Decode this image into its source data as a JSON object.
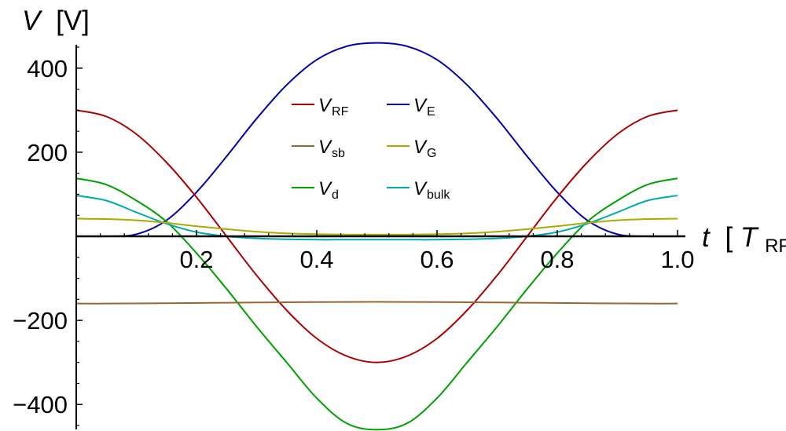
{
  "chart_data": {
    "type": "line",
    "ylabel": {
      "symbol": "V",
      "unit": "[V]"
    },
    "xlabel": {
      "symbol": "t",
      "open": "[",
      "unit_symbol": "T",
      "unit_sub": "RF",
      "close": "]"
    },
    "xlim": [
      0,
      1
    ],
    "ylim": [
      -460,
      460
    ],
    "x_ticks": [
      {
        "value": 0.2,
        "label": "0.2"
      },
      {
        "value": 0.4,
        "label": "0.4"
      },
      {
        "value": 0.6,
        "label": "0.6"
      },
      {
        "value": 0.8,
        "label": "0.8"
      },
      {
        "value": 1.0,
        "label": "1.0"
      }
    ],
    "y_ticks": [
      {
        "value": 400,
        "label": "400"
      },
      {
        "value": 200,
        "label": "200"
      },
      {
        "value": -200,
        "label": "−200"
      },
      {
        "value": -400,
        "label": "−400"
      }
    ],
    "x": [
      0,
      0.05,
      0.1,
      0.15,
      0.2,
      0.25,
      0.3,
      0.35,
      0.4,
      0.45,
      0.5,
      0.55,
      0.6,
      0.65,
      0.7,
      0.75,
      0.8,
      0.85,
      0.9,
      0.95,
      1.0
    ],
    "legend": {
      "placement": "top-center",
      "columns": 2
    },
    "series": [
      {
        "name": "V",
        "sub": "RF",
        "color": "#aa0000",
        "values": [
          300,
          285,
          243,
          176,
          93,
          0,
          -93,
          -176,
          -243,
          -285,
          -300,
          -285,
          -243,
          -176,
          -93,
          0,
          93,
          176,
          243,
          285,
          300
        ]
      },
      {
        "name": "V",
        "sub": "E",
        "color": "#0000aa",
        "values": [
          0,
          0,
          5,
          38,
          105,
          190,
          280,
          360,
          420,
          452,
          460,
          452,
          420,
          360,
          280,
          190,
          105,
          38,
          5,
          0,
          0
        ]
      },
      {
        "name": "V",
        "sub": "sb",
        "color": "#996633",
        "values": [
          -160,
          -160,
          -159.6,
          -159.2,
          -158.6,
          -158,
          -157.4,
          -156.8,
          -156.4,
          -156.1,
          -156,
          -156.1,
          -156.4,
          -156.8,
          -157.4,
          -158,
          -158.6,
          -159.2,
          -159.6,
          -160,
          -160
        ]
      },
      {
        "name": "V",
        "sub": "G",
        "color": "#aaaa00",
        "values": [
          42,
          41,
          38,
          32,
          24,
          17,
          11,
          7,
          5,
          4,
          4,
          4,
          5,
          7,
          11,
          17,
          24,
          32,
          38,
          41,
          42
        ]
      },
      {
        "name": "V",
        "sub": "d",
        "color": "#00a000",
        "values": [
          138,
          123,
          85,
          35,
          -40,
          -125,
          -215,
          -300,
          -385,
          -445,
          -460,
          -445,
          -385,
          -300,
          -215,
          -125,
          -40,
          35,
          85,
          123,
          138
        ]
      },
      {
        "name": "V",
        "sub": "bulk",
        "color": "#00aaaa",
        "values": [
          97,
          85,
          57,
          30,
          10,
          0,
          -5,
          -7,
          -8,
          -8,
          -8,
          -8,
          -8,
          -7,
          -5,
          0,
          10,
          30,
          57,
          85,
          97
        ]
      }
    ]
  }
}
